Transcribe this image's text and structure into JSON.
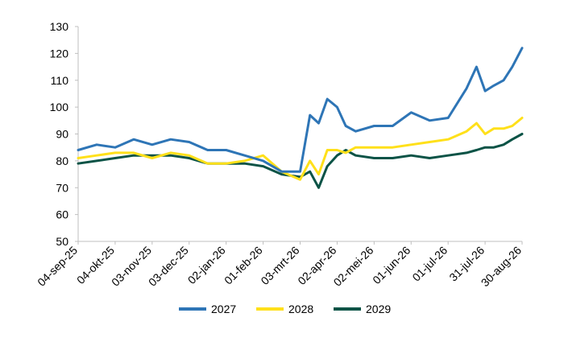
{
  "chart_data": {
    "type": "line",
    "title": "",
    "xlabel": "",
    "ylabel": "",
    "ylim": [
      50,
      130
    ],
    "yticks": [
      50,
      60,
      70,
      80,
      90,
      100,
      110,
      120,
      130
    ],
    "grid": false,
    "legend_position": "bottom",
    "x_tick_labels": [
      "04-sep-25",
      "04-okt-25",
      "03-nov-25",
      "03-dec-25",
      "02-jan-26",
      "01-feb-26",
      "03-mrt-26",
      "02-apr-26",
      "02-mei-26",
      "01-jun-26",
      "01-jul-26",
      "31-jul-26",
      "30-aug-26"
    ],
    "x": [
      "04-sep-25",
      "19-sep-25",
      "04-okt-25",
      "19-okt-25",
      "03-nov-25",
      "18-nov-25",
      "03-dec-25",
      "18-dec-25",
      "02-jan-26",
      "17-jan-26",
      "01-feb-26",
      "16-feb-26",
      "03-mrt-26",
      "11-mrt-26",
      "18-mrt-26",
      "25-mrt-26",
      "02-apr-26",
      "09-apr-26",
      "17-apr-26",
      "02-mei-26",
      "17-mei-26",
      "01-jun-26",
      "16-jun-26",
      "01-jul-26",
      "16-jul-26",
      "24-jul-26",
      "31-jul-26",
      "07-aug-26",
      "15-aug-26",
      "22-aug-26",
      "30-aug-26"
    ],
    "series": [
      {
        "name": "2027",
        "color": "#2e75b6",
        "values": [
          84,
          86,
          85,
          88,
          86,
          88,
          87,
          84,
          84,
          82,
          80,
          76,
          76,
          97,
          94,
          103,
          100,
          93,
          91,
          93,
          93,
          98,
          95,
          96,
          107,
          115,
          106,
          108,
          110,
          115,
          122
        ]
      },
      {
        "name": "2028",
        "color": "#ffe01a",
        "values": [
          81,
          82,
          83,
          83,
          81,
          83,
          82,
          79,
          79,
          80,
          82,
          76,
          73,
          80,
          75,
          84,
          84,
          83,
          85,
          85,
          85,
          86,
          87,
          88,
          91,
          94,
          90,
          92,
          92,
          93,
          96
        ]
      },
      {
        "name": "2029",
        "color": "#0b5346",
        "values": [
          79,
          80,
          81,
          82,
          82,
          82,
          81,
          79,
          79,
          79,
          78,
          75,
          74,
          76,
          70,
          78,
          82,
          84,
          82,
          81,
          81,
          82,
          81,
          82,
          83,
          84,
          85,
          85,
          86,
          88,
          90
        ]
      }
    ]
  }
}
